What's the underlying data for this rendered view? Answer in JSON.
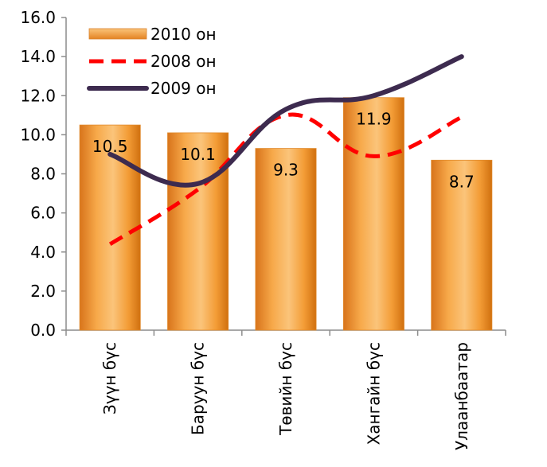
{
  "chart_data": {
    "type": "bar",
    "title": "",
    "xlabel": "",
    "ylabel": "",
    "categories": [
      "Зүүн бүс",
      "Баруун бүс",
      "Төвийн бүс",
      "Хангайн бүс",
      "Улаанбаатар"
    ],
    "ylim": [
      0,
      16
    ],
    "yticks": [
      "0.0",
      "2.0",
      "4.0",
      "6.0",
      "8.0",
      "10.0",
      "12.0",
      "14.0",
      "16.0"
    ],
    "grid": false,
    "legend_position": "top-left",
    "series": [
      {
        "name": "2010 он",
        "kind": "bar",
        "values": [
          10.5,
          10.1,
          9.3,
          11.9,
          8.7
        ],
        "labels": [
          "10.5",
          "10.1",
          "9.3",
          "11.9",
          "8.7"
        ],
        "color": "#f5a03a"
      },
      {
        "name": "2008 он",
        "kind": "line",
        "style": "dashed",
        "values": [
          4.4,
          7.2,
          11.0,
          8.9,
          10.9
        ],
        "color": "#ff0000"
      },
      {
        "name": "2009 он",
        "kind": "line",
        "style": "solid",
        "values": [
          9.0,
          7.5,
          11.3,
          12.0,
          14.0
        ],
        "color": "#3d2b4f"
      }
    ]
  }
}
